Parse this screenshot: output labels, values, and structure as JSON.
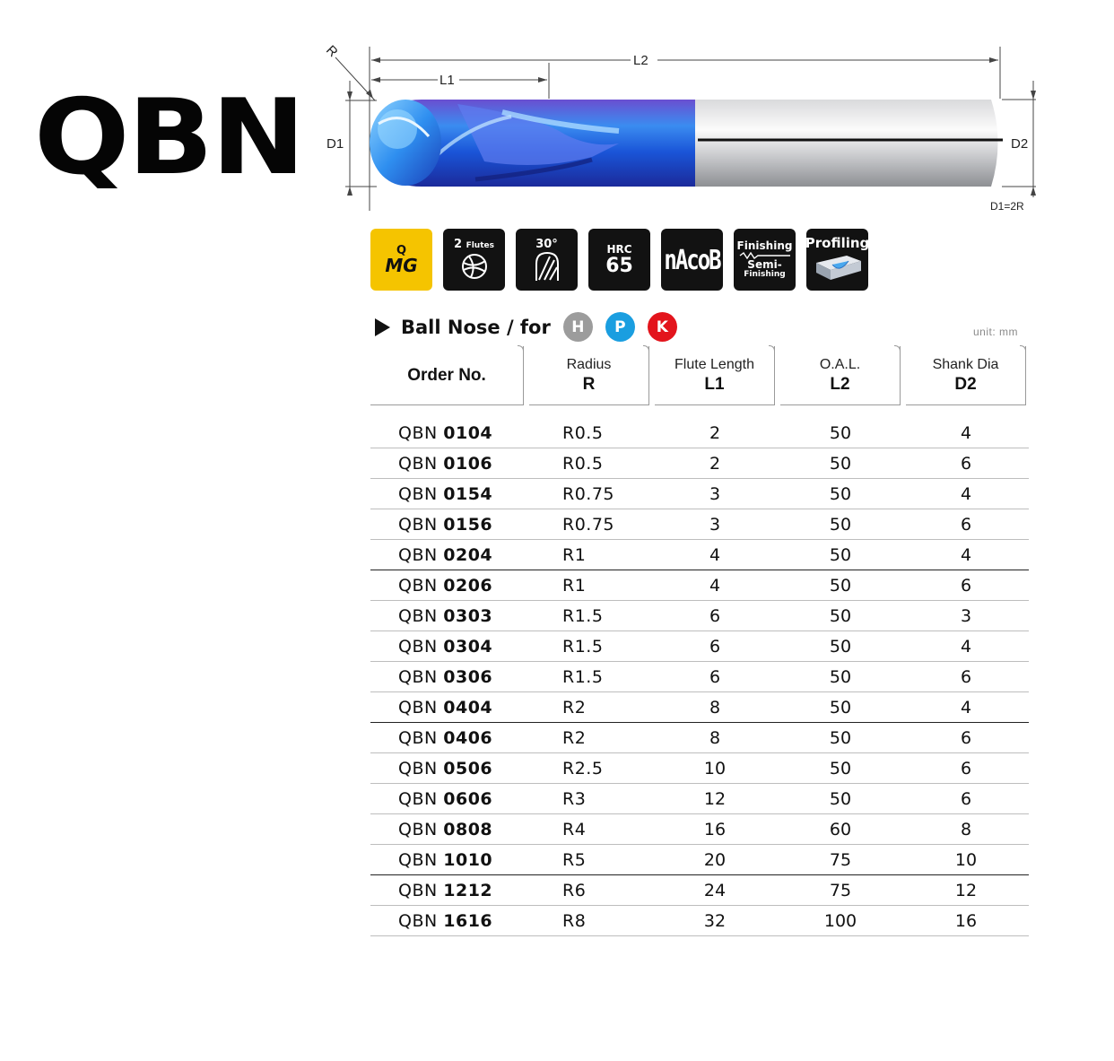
{
  "brand": "QBN",
  "drawing": {
    "label_l1": "L1",
    "label_l2": "L2",
    "label_r": "R",
    "label_d1": "D1",
    "label_d2": "D2",
    "note": "D1=2R"
  },
  "badges": {
    "mg_q": "Q",
    "mg": "MG",
    "flutes_num": "2",
    "flutes_word": "Flutes",
    "helix": "30°",
    "hrc": "HRC",
    "hrc_value": "65",
    "coating": "nAcoB",
    "finishing": "Finishing",
    "semi": "Semi-",
    "semi_finishing": "Finishing",
    "profiling": "Profiling"
  },
  "section": {
    "title": "Ball Nose / for",
    "materials": [
      {
        "label": "H",
        "color": "#9c9c9c"
      },
      {
        "label": "P",
        "color": "#1a9ee0"
      },
      {
        "label": "K",
        "color": "#e3141c"
      }
    ],
    "unit": "unit: mm"
  },
  "table": {
    "headers": {
      "order": "Order No.",
      "radius_top": "Radius",
      "radius_bot": "R",
      "flute_top": "Flute Length",
      "flute_bot": "L1",
      "oal_top": "O.A.L.",
      "oal_bot": "L2",
      "shank_top": "Shank Dia",
      "shank_bot": "D2"
    },
    "rows": [
      {
        "prefix": "QBN",
        "code": "0104",
        "r": "R0.5",
        "l1": "2",
        "l2": "50",
        "d2": "4"
      },
      {
        "prefix": "QBN",
        "code": "0106",
        "r": "R0.5",
        "l1": "2",
        "l2": "50",
        "d2": "6"
      },
      {
        "prefix": "QBN",
        "code": "0154",
        "r": "R0.75",
        "l1": "3",
        "l2": "50",
        "d2": "4"
      },
      {
        "prefix": "QBN",
        "code": "0156",
        "r": "R0.75",
        "l1": "3",
        "l2": "50",
        "d2": "6"
      },
      {
        "prefix": "QBN",
        "code": "0204",
        "r": "R1",
        "l1": "4",
        "l2": "50",
        "d2": "4"
      },
      {
        "prefix": "QBN",
        "code": "0206",
        "r": "R1",
        "l1": "4",
        "l2": "50",
        "d2": "6"
      },
      {
        "prefix": "QBN",
        "code": "0303",
        "r": "R1.5",
        "l1": "6",
        "l2": "50",
        "d2": "3"
      },
      {
        "prefix": "QBN",
        "code": "0304",
        "r": "R1.5",
        "l1": "6",
        "l2": "50",
        "d2": "4"
      },
      {
        "prefix": "QBN",
        "code": "0306",
        "r": "R1.5",
        "l1": "6",
        "l2": "50",
        "d2": "6"
      },
      {
        "prefix": "QBN",
        "code": "0404",
        "r": "R2",
        "l1": "8",
        "l2": "50",
        "d2": "4"
      },
      {
        "prefix": "QBN",
        "code": "0406",
        "r": "R2",
        "l1": "8",
        "l2": "50",
        "d2": "6"
      },
      {
        "prefix": "QBN",
        "code": "0506",
        "r": "R2.5",
        "l1": "10",
        "l2": "50",
        "d2": "6"
      },
      {
        "prefix": "QBN",
        "code": "0606",
        "r": "R3",
        "l1": "12",
        "l2": "50",
        "d2": "6"
      },
      {
        "prefix": "QBN",
        "code": "0808",
        "r": "R4",
        "l1": "16",
        "l2": "60",
        "d2": "8"
      },
      {
        "prefix": "QBN",
        "code": "1010",
        "r": "R5",
        "l1": "20",
        "l2": "75",
        "d2": "10"
      },
      {
        "prefix": "QBN",
        "code": "1212",
        "r": "R6",
        "l1": "24",
        "l2": "75",
        "d2": "12"
      },
      {
        "prefix": "QBN",
        "code": "1616",
        "r": "R8",
        "l1": "32",
        "l2": "100",
        "d2": "16"
      }
    ]
  }
}
